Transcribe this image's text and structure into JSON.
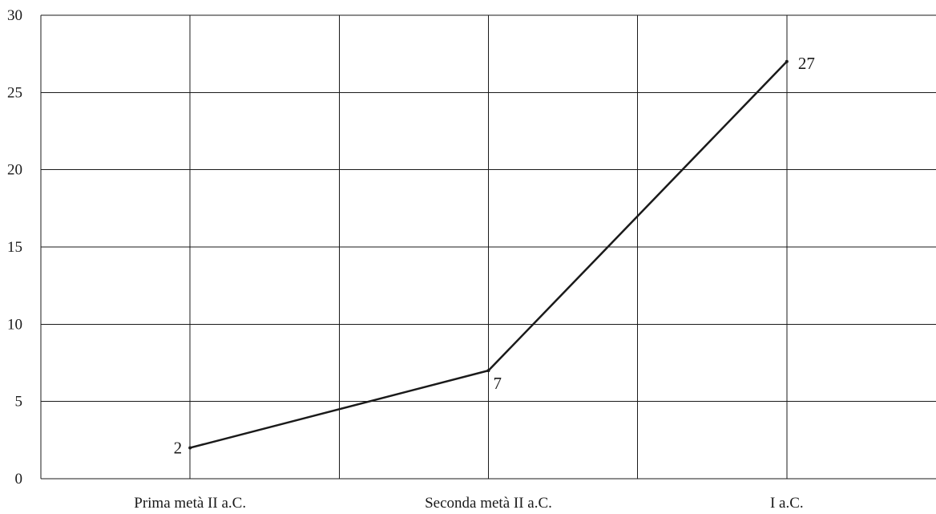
{
  "chart_data": {
    "type": "line",
    "title": "",
    "xlabel": "",
    "ylabel": "",
    "categories": [
      "Prima metà II a.C.",
      "Seconda metà II a.C.",
      "I a.C."
    ],
    "series": [
      {
        "values": [
          2,
          7,
          27
        ]
      }
    ],
    "data_labels": [
      "2",
      "7",
      "27"
    ],
    "ylim": [
      0,
      30
    ],
    "yticks": [
      0,
      5,
      10,
      15,
      20,
      25,
      30
    ],
    "grid": true,
    "legend": "none",
    "colors": {
      "line": "#1a1a1a",
      "grid": "#1a1a1a",
      "background": "#ffffff"
    }
  }
}
